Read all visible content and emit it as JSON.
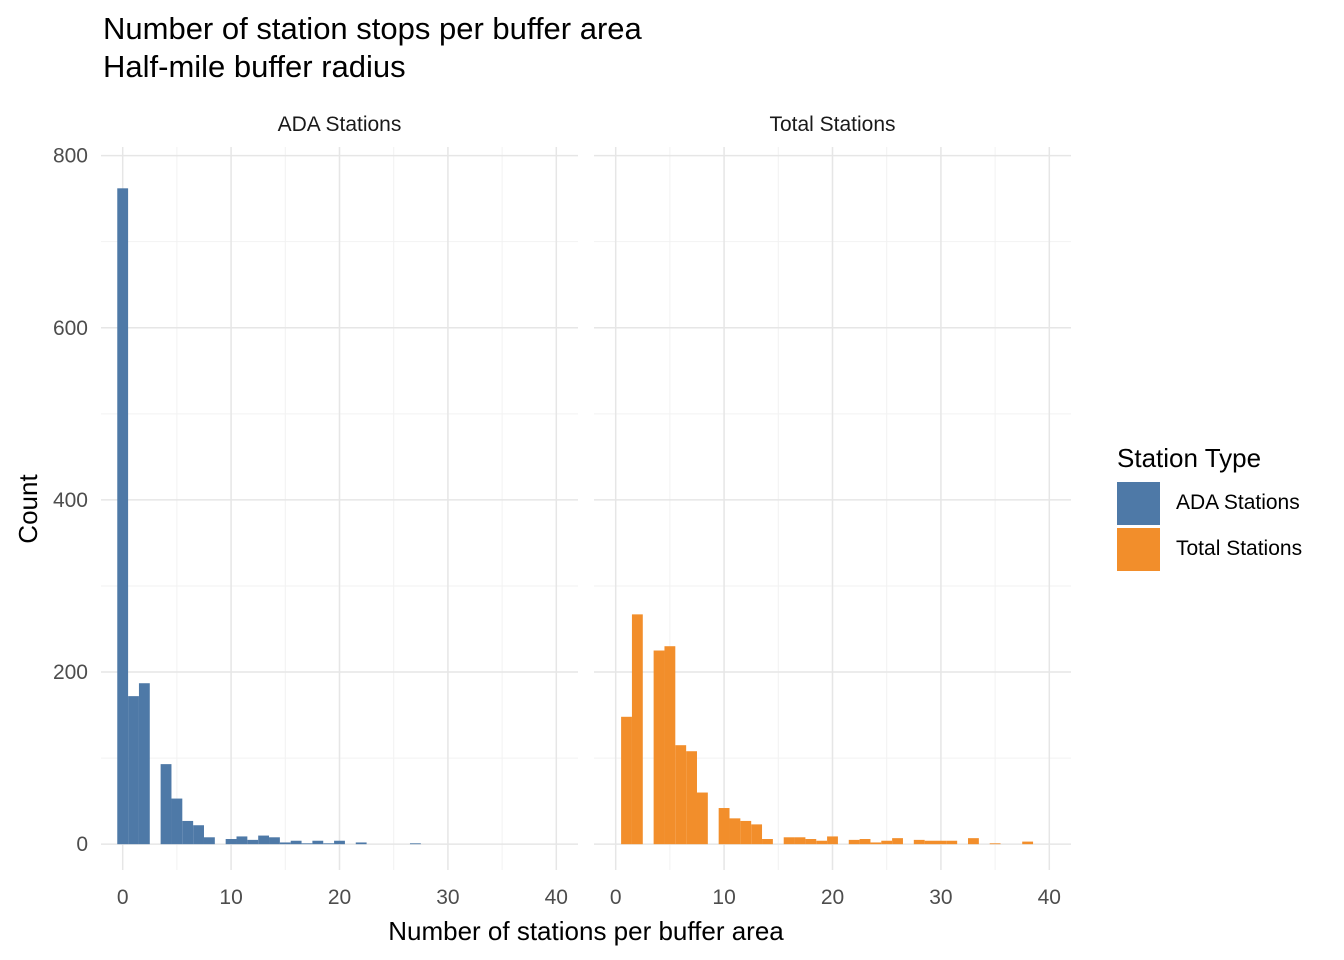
{
  "title": "Number of station stops per buffer area",
  "subtitle": "Half-mile buffer radius",
  "legend": {
    "title": "Station Type",
    "items": [
      {
        "label": "ADA Stations",
        "color": "#4E79A7"
      },
      {
        "label": "Total Stations",
        "color": "#F28E2B"
      }
    ]
  },
  "chart_data": {
    "type": "bar",
    "subtype": "faceted histogram",
    "xlabel": "Number of stations per buffer area",
    "ylabel": "Count",
    "xlim": [
      -2,
      42
    ],
    "ylim": [
      -30,
      810
    ],
    "x_ticks": [
      0,
      10,
      20,
      30,
      40
    ],
    "y_ticks": [
      0,
      200,
      400,
      600,
      800
    ],
    "bin_width": 1,
    "grid": true,
    "legend_position": "right",
    "facets": [
      {
        "name": "ADA Stations",
        "color": "#4E79A7",
        "bins": [
          {
            "x": 0,
            "count": 762
          },
          {
            "x": 1,
            "count": 172
          },
          {
            "x": 2,
            "count": 187
          },
          {
            "x": 3,
            "count": 0
          },
          {
            "x": 4,
            "count": 93
          },
          {
            "x": 5,
            "count": 53
          },
          {
            "x": 6,
            "count": 27
          },
          {
            "x": 7,
            "count": 22
          },
          {
            "x": 8,
            "count": 8
          },
          {
            "x": 9,
            "count": 0
          },
          {
            "x": 10,
            "count": 6
          },
          {
            "x": 11,
            "count": 9
          },
          {
            "x": 12,
            "count": 5
          },
          {
            "x": 13,
            "count": 10
          },
          {
            "x": 14,
            "count": 8
          },
          {
            "x": 15,
            "count": 2
          },
          {
            "x": 16,
            "count": 4
          },
          {
            "x": 17,
            "count": 1
          },
          {
            "x": 18,
            "count": 4
          },
          {
            "x": 19,
            "count": 1
          },
          {
            "x": 20,
            "count": 4
          },
          {
            "x": 21,
            "count": 0
          },
          {
            "x": 22,
            "count": 2
          },
          {
            "x": 23,
            "count": 0
          },
          {
            "x": 24,
            "count": 0
          },
          {
            "x": 25,
            "count": 0
          },
          {
            "x": 26,
            "count": 0
          },
          {
            "x": 27,
            "count": 1
          }
        ]
      },
      {
        "name": "Total Stations",
        "color": "#F28E2B",
        "bins": [
          {
            "x": 1,
            "count": 148
          },
          {
            "x": 2,
            "count": 267
          },
          {
            "x": 3,
            "count": 0
          },
          {
            "x": 4,
            "count": 225
          },
          {
            "x": 5,
            "count": 230
          },
          {
            "x": 6,
            "count": 115
          },
          {
            "x": 7,
            "count": 108
          },
          {
            "x": 8,
            "count": 60
          },
          {
            "x": 9,
            "count": 0
          },
          {
            "x": 10,
            "count": 42
          },
          {
            "x": 11,
            "count": 30
          },
          {
            "x": 12,
            "count": 27
          },
          {
            "x": 13,
            "count": 23
          },
          {
            "x": 14,
            "count": 6
          },
          {
            "x": 15,
            "count": 0
          },
          {
            "x": 16,
            "count": 8
          },
          {
            "x": 17,
            "count": 8
          },
          {
            "x": 18,
            "count": 6
          },
          {
            "x": 19,
            "count": 4
          },
          {
            "x": 20,
            "count": 9
          },
          {
            "x": 21,
            "count": 0
          },
          {
            "x": 22,
            "count": 5
          },
          {
            "x": 23,
            "count": 6
          },
          {
            "x": 24,
            "count": 2
          },
          {
            "x": 25,
            "count": 4
          },
          {
            "x": 26,
            "count": 7
          },
          {
            "x": 27,
            "count": 0
          },
          {
            "x": 28,
            "count": 5
          },
          {
            "x": 29,
            "count": 4
          },
          {
            "x": 30,
            "count": 4
          },
          {
            "x": 31,
            "count": 4
          },
          {
            "x": 32,
            "count": 0
          },
          {
            "x": 33,
            "count": 7
          },
          {
            "x": 34,
            "count": 0
          },
          {
            "x": 35,
            "count": 1
          },
          {
            "x": 36,
            "count": 0
          },
          {
            "x": 37,
            "count": 0
          },
          {
            "x": 38,
            "count": 3
          }
        ]
      }
    ]
  }
}
